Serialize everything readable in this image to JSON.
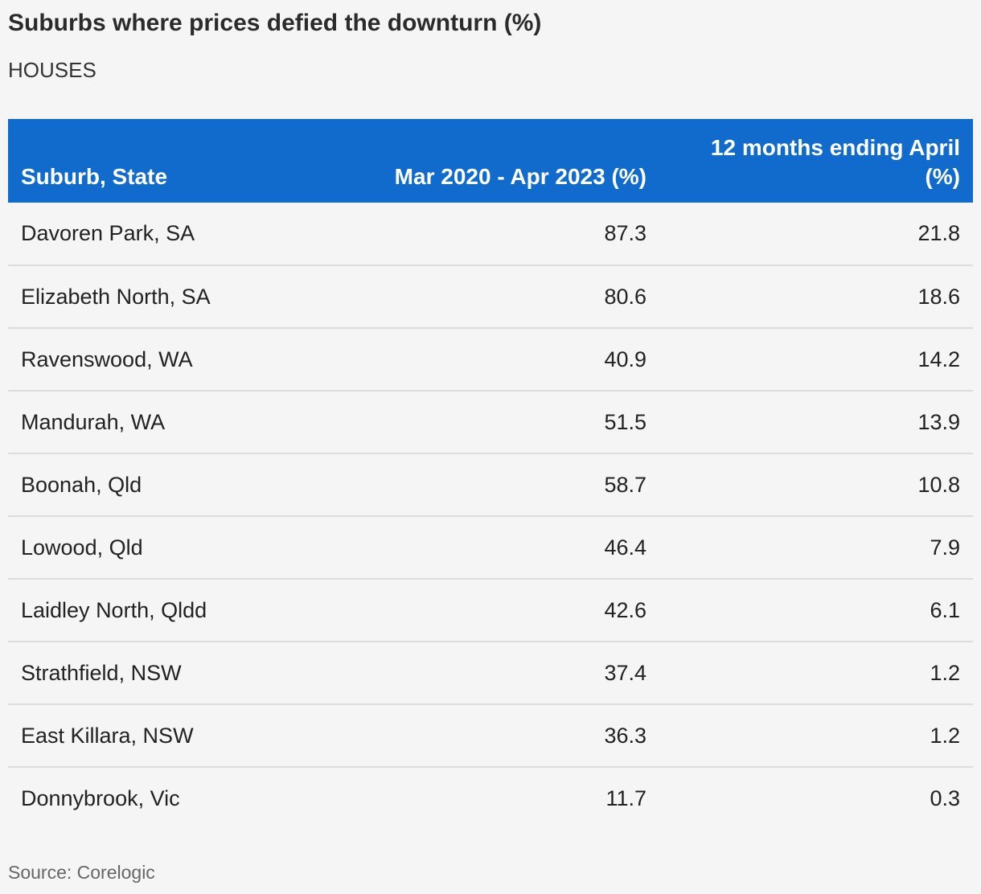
{
  "title": "Suburbs where prices defied the downturn (%)",
  "subtitle": "HOUSES",
  "source": "Source: Corelogic",
  "colors": {
    "header_bg": "#106bcc",
    "header_text": "#ffffff",
    "row_divider": "#dcdcdc",
    "page_bg": "#f5f5f5"
  },
  "chart_data": {
    "type": "table",
    "title": "Suburbs where prices defied the downturn (%)",
    "subtitle": "HOUSES",
    "columns": [
      {
        "label": "Suburb, State"
      },
      {
        "label": "Mar 2020 - Apr 2023 (%)"
      },
      {
        "label": "12 months ending April (%)"
      }
    ],
    "rows": [
      {
        "suburb": "Davoren Park, SA",
        "since_2020": "87.3",
        "twelve_months": "21.8"
      },
      {
        "suburb": "Elizabeth North, SA",
        "since_2020": "80.6",
        "twelve_months": "18.6"
      },
      {
        "suburb": "Ravenswood, WA",
        "since_2020": "40.9",
        "twelve_months": "14.2"
      },
      {
        "suburb": "Mandurah, WA",
        "since_2020": "51.5",
        "twelve_months": "13.9"
      },
      {
        "suburb": "Boonah, Qld",
        "since_2020": "58.7",
        "twelve_months": "10.8"
      },
      {
        "suburb": "Lowood, Qld",
        "since_2020": "46.4",
        "twelve_months": "7.9"
      },
      {
        "suburb": "Laidley North, Qldd",
        "since_2020": "42.6",
        "twelve_months": "6.1"
      },
      {
        "suburb": "Strathfield, NSW",
        "since_2020": "37.4",
        "twelve_months": "1.2"
      },
      {
        "suburb": "East Killara, NSW",
        "since_2020": "36.3",
        "twelve_months": "1.2"
      },
      {
        "suburb": "Donnybrook, Vic",
        "since_2020": "11.7",
        "twelve_months": "0.3"
      }
    ],
    "source": "Source: Corelogic"
  }
}
